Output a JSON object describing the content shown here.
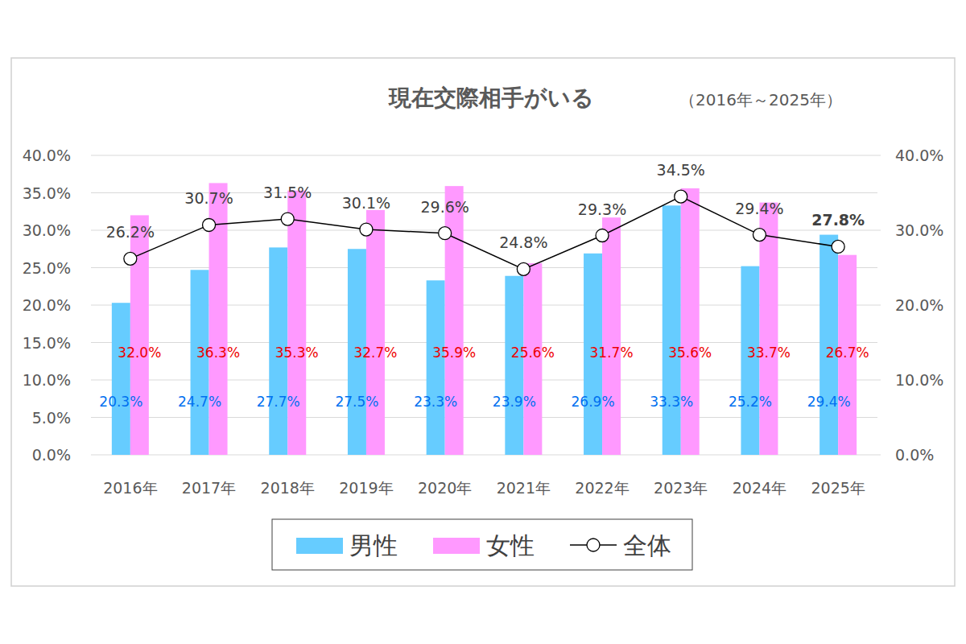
{
  "chart_data": {
    "type": "bar",
    "title": "現在交際相手がいる",
    "subtitle": "（2016年～2025年）",
    "categories": [
      "2016年",
      "2017年",
      "2018年",
      "2019年",
      "2020年",
      "2021年",
      "2022年",
      "2023年",
      "2024年",
      "2025年"
    ],
    "series": [
      {
        "name": "男性",
        "color": "#66ccff",
        "values": [
          20.3,
          24.7,
          27.7,
          27.5,
          23.3,
          23.9,
          26.9,
          33.3,
          25.2,
          29.4
        ],
        "value_labels": [
          "20.3%",
          "24.7%",
          "27.7%",
          "27.5%",
          "23.3%",
          "23.9%",
          "26.9%",
          "33.3%",
          "25.2%",
          "29.4%"
        ]
      },
      {
        "name": "女性",
        "color": "#ff99ff",
        "values": [
          32.0,
          36.3,
          35.3,
          32.7,
          35.9,
          25.6,
          31.7,
          35.6,
          33.7,
          26.7
        ],
        "value_labels": [
          "32.0%",
          "36.3%",
          "35.3%",
          "32.7%",
          "35.9%",
          "25.6%",
          "31.7%",
          "35.6%",
          "33.7%",
          "26.7%"
        ]
      },
      {
        "name": "全体",
        "type": "line",
        "axis": "y2",
        "color": "#000000",
        "marker": "circle",
        "values": [
          26.2,
          30.7,
          31.5,
          30.1,
          29.6,
          24.8,
          29.3,
          34.5,
          29.4,
          27.8
        ],
        "value_labels": [
          "26.2%",
          "30.7%",
          "31.5%",
          "30.1%",
          "29.6%",
          "24.8%",
          "29.3%",
          "34.5%",
          "29.4%",
          "27.8%"
        ]
      }
    ],
    "ylim": [
      0,
      40
    ],
    "yticks": [
      {
        "value": 0,
        "label": "0.0%"
      },
      {
        "value": 5,
        "label": "5.0%"
      },
      {
        "value": 10,
        "label": "10.0%"
      },
      {
        "value": 15,
        "label": "15.0%"
      },
      {
        "value": 20,
        "label": "20.0%"
      },
      {
        "value": 25,
        "label": "25.0%"
      },
      {
        "value": 30,
        "label": "30.0%"
      },
      {
        "value": 35,
        "label": "35.0%"
      },
      {
        "value": 40,
        "label": "40.0%"
      }
    ],
    "y2lim": [
      0,
      40
    ],
    "y2ticks": [
      {
        "value": 0,
        "label": "0.0%"
      },
      {
        "value": 10,
        "label": "10.0%"
      },
      {
        "value": 20,
        "label": "20.0%"
      },
      {
        "value": 30,
        "label": "30.0%"
      },
      {
        "value": 40,
        "label": "40.0%"
      }
    ],
    "grid": true,
    "legend": "bottom",
    "data_labels": true
  }
}
